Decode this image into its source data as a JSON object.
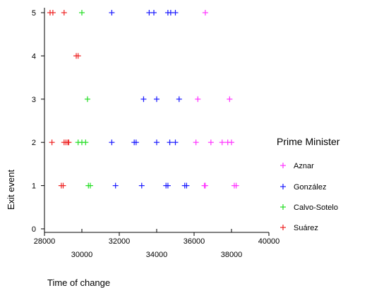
{
  "chart_data": {
    "type": "scatter",
    "title": "",
    "xlabel": "Time of change",
    "ylabel": "Exit event",
    "xlim": [
      28000,
      40000
    ],
    "ylim": [
      0,
      5
    ],
    "x_ticks_major": [
      28000,
      32000,
      36000,
      40000
    ],
    "x_ticks_minor": [
      30000,
      34000,
      38000
    ],
    "y_ticks": [
      0,
      1,
      2,
      3,
      4,
      5
    ],
    "grid": false,
    "marker": "plus",
    "legend_title": "Prime Minister",
    "legend_position": "right",
    "series": [
      {
        "name": "Aznar",
        "color": "#ff33ff",
        "points": [
          [
            36600,
            5
          ],
          [
            36200,
            3
          ],
          [
            37900,
            3
          ],
          [
            36100,
            2
          ],
          [
            36900,
            2
          ],
          [
            37500,
            2
          ],
          [
            37800,
            2
          ],
          [
            38000,
            2
          ],
          [
            36550,
            1
          ],
          [
            36600,
            1
          ],
          [
            38150,
            1
          ],
          [
            38250,
            1
          ]
        ]
      },
      {
        "name": "González",
        "color": "#1a1aff",
        "points": [
          [
            31600,
            5
          ],
          [
            33600,
            5
          ],
          [
            33850,
            5
          ],
          [
            34600,
            5
          ],
          [
            34750,
            5
          ],
          [
            35000,
            5
          ],
          [
            33300,
            3
          ],
          [
            34000,
            3
          ],
          [
            35200,
            3
          ],
          [
            31600,
            2
          ],
          [
            32800,
            2
          ],
          [
            32900,
            2
          ],
          [
            34000,
            2
          ],
          [
            34700,
            2
          ],
          [
            35000,
            2
          ],
          [
            31800,
            1
          ],
          [
            33200,
            1
          ],
          [
            34500,
            1
          ],
          [
            34600,
            1
          ],
          [
            35500,
            1
          ],
          [
            35600,
            1
          ]
        ]
      },
      {
        "name": "Calvo-Sotelo",
        "color": "#22dd22",
        "points": [
          [
            30000,
            5
          ],
          [
            30300,
            3
          ],
          [
            29800,
            2
          ],
          [
            30000,
            2
          ],
          [
            30200,
            2
          ],
          [
            30350,
            1
          ],
          [
            30450,
            1
          ]
        ]
      },
      {
        "name": "Suárez",
        "color": "#ee2222",
        "points": [
          [
            28300,
            5
          ],
          [
            28450,
            5
          ],
          [
            29050,
            5
          ],
          [
            29700,
            4
          ],
          [
            29800,
            4
          ],
          [
            28400,
            2
          ],
          [
            29050,
            2
          ],
          [
            29150,
            2
          ],
          [
            29250,
            2
          ],
          [
            29300,
            2
          ],
          [
            28900,
            1
          ],
          [
            29000,
            1
          ]
        ]
      }
    ]
  }
}
